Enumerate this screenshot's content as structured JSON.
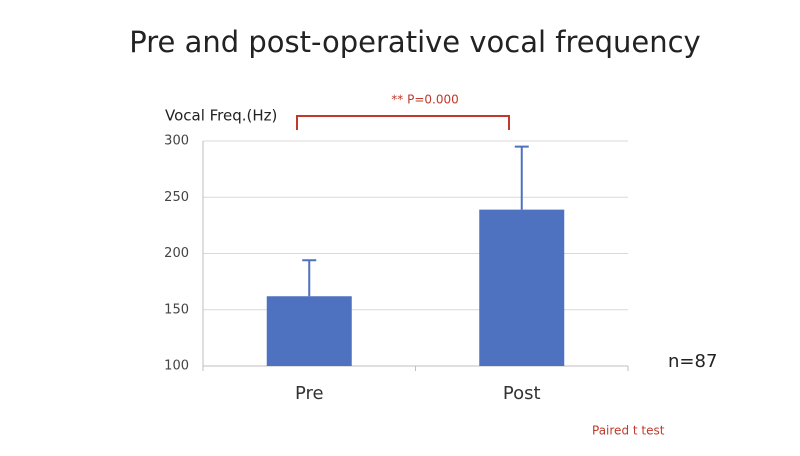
{
  "chart_data": {
    "type": "bar",
    "title": "Pre and post-operative vocal frequency",
    "y_label": "Vocal Freq.(Hz)",
    "categories": [
      "Pre",
      "Post"
    ],
    "values": [
      162,
      239
    ],
    "errors": [
      32,
      56
    ],
    "color": "#4e71c0",
    "ylim": [
      100,
      300
    ],
    "yticks": [
      100,
      150,
      200,
      250,
      300
    ],
    "grid": true,
    "significance": "** P=0.000",
    "sample_size": "n=87",
    "test_note": "Paired t test"
  }
}
